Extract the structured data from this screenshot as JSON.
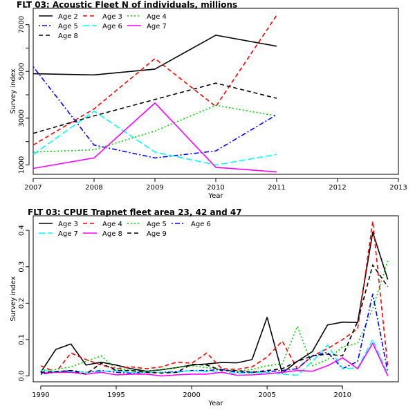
{
  "chart_data": [
    {
      "type": "line",
      "title": "FLT 03: Acoustic Fleet   N of individuals, millions",
      "xlabel": "Year",
      "ylabel": "Survey index",
      "xlim": [
        2007,
        2013
      ],
      "ylim": [
        600,
        7700
      ],
      "x_ticks": [
        "2007",
        "2008",
        "2009",
        "2010",
        "2011",
        "2012",
        "2013"
      ],
      "y_ticks": [
        "1000",
        "3000",
        "5000",
        "7000"
      ],
      "y_minor_ticks": [
        2000,
        4000,
        6000
      ],
      "legend_position": "top-left",
      "x": [
        2007,
        2008,
        2009,
        2010,
        2011
      ],
      "series": [
        {
          "name": "Age 2",
          "color": "#000000",
          "dash": "solid",
          "values": [
            4900,
            4850,
            5100,
            6550,
            6080
          ]
        },
        {
          "name": "Age 3",
          "color": "#ff0000",
          "dash": "dashed",
          "values": [
            1850,
            3400,
            5550,
            3500,
            7400
          ]
        },
        {
          "name": "Age 4",
          "color": "#00cd00",
          "dash": "dotted",
          "values": [
            1550,
            1650,
            2450,
            3550,
            3100
          ]
        },
        {
          "name": "Age 5",
          "color": "#0000ff",
          "dash": "dotdash",
          "values": [
            5200,
            1850,
            1300,
            1600,
            3150
          ]
        },
        {
          "name": "Age 6",
          "color": "#00ffff",
          "dash": "longdash",
          "values": [
            1450,
            3300,
            1550,
            1000,
            1450
          ]
        },
        {
          "name": "Age 7",
          "color": "#ff00ff",
          "dash": "solid",
          "values": [
            850,
            1300,
            3650,
            900,
            700
          ]
        },
        {
          "name": "Age 8",
          "color": "#000000",
          "dash": "dashed",
          "values": [
            2350,
            3100,
            3800,
            4500,
            3850
          ]
        }
      ]
    },
    {
      "type": "line",
      "title": "FLT 03: CPUE Trapnet fleet area 23, 42 and 47",
      "xlabel": "Year",
      "ylabel": "Survey index",
      "xlim": [
        1989.5,
        2013.7
      ],
      "ylim": [
        -0.016,
        0.44
      ],
      "x_ticks": [
        "1990",
        "1995",
        "2000",
        "2005",
        "2010"
      ],
      "y_ticks": [
        "0.0",
        "0.1",
        "0.2",
        "0.3",
        "0.4"
      ],
      "legend_position": "top-left",
      "x": [
        1990,
        1991,
        1992,
        1993,
        1994,
        1995,
        1996,
        1997,
        1998,
        1999,
        2000,
        2001,
        2002,
        2003,
        2004,
        2005,
        2006,
        2007,
        2008,
        2009,
        2010,
        2011,
        2012,
        2013
      ],
      "series": [
        {
          "name": "Age 3",
          "color": "#000000",
          "dash": "solid",
          "values": [
            0.01,
            0.073,
            0.088,
            0.03,
            0.038,
            0.03,
            0.02,
            0.013,
            0.017,
            0.023,
            0.03,
            0.033,
            0.037,
            0.036,
            0.045,
            0.161,
            0.008,
            0.04,
            0.067,
            0.14,
            0.148,
            0.147,
            0.395,
            0.265
          ]
        },
        {
          "name": "Age 4",
          "color": "#ff0000",
          "dash": "dashed",
          "values": [
            0.028,
            0.01,
            0.063,
            0.045,
            0.03,
            0.02,
            0.025,
            0.02,
            0.025,
            0.038,
            0.035,
            0.063,
            0.02,
            0.018,
            0.025,
            0.052,
            0.096,
            0.02,
            0.055,
            0.075,
            0.1,
            0.13,
            0.425,
            0.025
          ]
        },
        {
          "name": "Age 5",
          "color": "#00cd00",
          "dash": "dotted",
          "values": [
            0.015,
            0.018,
            0.025,
            0.04,
            0.055,
            0.02,
            0.015,
            0.013,
            0.018,
            0.023,
            0.028,
            0.023,
            0.018,
            0.013,
            0.018,
            0.028,
            0.033,
            0.136,
            0.028,
            0.045,
            0.08,
            0.09,
            0.185,
            0.317
          ]
        },
        {
          "name": "Age 6",
          "color": "#0000ff",
          "dash": "dotdash",
          "values": [
            0.005,
            0.01,
            0.015,
            0.01,
            0.015,
            0.01,
            0.008,
            0.01,
            0.01,
            0.012,
            0.015,
            0.015,
            0.018,
            0.01,
            0.01,
            0.012,
            0.015,
            0.02,
            0.055,
            0.065,
            0.02,
            0.04,
            0.225,
            0.01
          ]
        },
        {
          "name": "Age 7",
          "color": "#00ffff",
          "dash": "longdash",
          "values": [
            0.015,
            0.012,
            0.013,
            0.01,
            0.012,
            0.015,
            0.01,
            0.01,
            0.01,
            0.01,
            0.015,
            0.012,
            0.01,
            0.008,
            0.008,
            0.01,
            0.005,
            0.002,
            0.04,
            0.085,
            0.02,
            0.022,
            0.1,
            0.003
          ]
        },
        {
          "name": "Age 8",
          "color": "#ff00ff",
          "dash": "solid",
          "values": [
            0.008,
            0.01,
            0.01,
            0.005,
            0.01,
            0.003,
            0.005,
            0.005,
            0.0,
            0.003,
            0.005,
            0.005,
            0.01,
            0.002,
            0.003,
            0.006,
            0.01,
            0.015,
            0.013,
            0.028,
            0.05,
            0.02,
            0.09,
            0.0
          ]
        },
        {
          "name": "Age 9",
          "color": "#000000",
          "dash": "dashed",
          "values": [
            0.01,
            0.012,
            0.015,
            0.005,
            0.035,
            0.015,
            0.015,
            0.01,
            0.008,
            0.01,
            0.032,
            0.03,
            0.015,
            0.015,
            0.01,
            0.015,
            0.02,
            0.04,
            0.055,
            0.06,
            0.055,
            0.15,
            0.305,
            0.245
          ]
        }
      ]
    }
  ]
}
